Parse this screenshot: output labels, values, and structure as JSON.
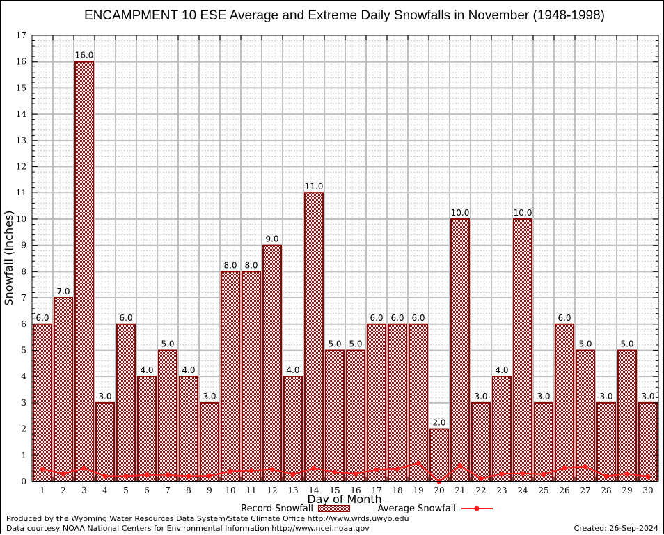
{
  "chart_data": {
    "type": "bar",
    "title": "ENCAMPMENT 10 ESE Average and Extreme Daily Snowfalls in November (1948-1998)",
    "xlabel": "Day of Month",
    "ylabel": "Snowfall (Inches)",
    "ylim": [
      0,
      17
    ],
    "yticks": [
      "0",
      "1",
      "2",
      "3",
      "4",
      "5",
      "6",
      "7",
      "8",
      "9",
      "10",
      "11",
      "12",
      "13",
      "14",
      "15",
      "16",
      "17"
    ],
    "grid": true,
    "legend_position": "bottom-center",
    "categories": [
      "1",
      "2",
      "3",
      "4",
      "5",
      "6",
      "7",
      "8",
      "9",
      "10",
      "11",
      "12",
      "13",
      "14",
      "15",
      "16",
      "17",
      "18",
      "19",
      "20",
      "21",
      "22",
      "23",
      "24",
      "25",
      "26",
      "27",
      "28",
      "29",
      "30"
    ],
    "series": [
      {
        "name": "Record Snowfall",
        "type": "bar",
        "color": "#8b0000",
        "values": [
          6.0,
          7.0,
          16.0,
          3.0,
          6.0,
          4.0,
          5.0,
          4.0,
          3.0,
          8.0,
          8.0,
          9.0,
          4.0,
          11.0,
          5.0,
          5.0,
          6.0,
          6.0,
          6.0,
          2.0,
          10.0,
          3.0,
          4.0,
          10.0,
          3.0,
          6.0,
          5.0,
          3.0,
          5.0,
          3.0
        ],
        "labels": [
          "6.0",
          "7.0",
          "16.0",
          "3.0",
          "6.0",
          "4.0",
          "5.0",
          "4.0",
          "3.0",
          "8.0",
          "8.0",
          "9.0",
          "4.0",
          "11.0",
          "5.0",
          "5.0",
          "6.0",
          "6.0",
          "6.0",
          "2.0",
          "10.0",
          "3.0",
          "4.0",
          "10.0",
          "3.0",
          "6.0",
          "5.0",
          "3.0",
          "5.0",
          "3.0"
        ]
      },
      {
        "name": "Average Snowfall",
        "type": "line",
        "color": "#ff2020",
        "values": [
          0.47,
          0.29,
          0.5,
          0.2,
          0.2,
          0.25,
          0.25,
          0.2,
          0.21,
          0.38,
          0.41,
          0.46,
          0.27,
          0.5,
          0.35,
          0.29,
          0.45,
          0.48,
          0.69,
          0.0,
          0.6,
          0.11,
          0.29,
          0.3,
          0.27,
          0.51,
          0.56,
          0.2,
          0.29,
          0.18
        ]
      }
    ]
  },
  "footer": {
    "produced_by": "Produced by the Wyoming Water Resources Data System/State Climate Office http://www.wrds.uwyo.edu",
    "data_courtesy": "Data courtesy NOAA National Centers for Environmental Information http://www.ncei.noaa.gov",
    "created": "Created: 26-Sep-2024"
  }
}
